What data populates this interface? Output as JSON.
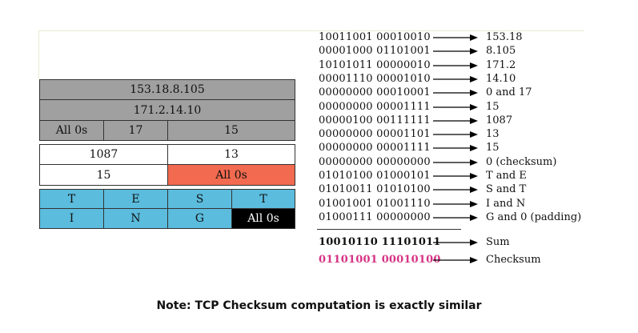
{
  "header_rows": [
    {
      "cells": [
        {
          "text": "153.18.8.105",
          "color": "gray"
        }
      ]
    },
    {
      "cells": [
        {
          "text": "171.2.14.10",
          "color": "gray"
        }
      ]
    },
    {
      "cells": [
        {
          "text": "All 0s",
          "color": "gray"
        },
        {
          "text": "17",
          "color": "gray"
        },
        {
          "text": "15",
          "color": "gray"
        }
      ]
    },
    {
      "cells": [
        {
          "text": "1087",
          "color": "white"
        },
        {
          "text": "13",
          "color": "white"
        }
      ]
    },
    {
      "cells": [
        {
          "text": "15",
          "color": "white"
        },
        {
          "text": "All 0s",
          "color": "orange"
        }
      ]
    },
    {
      "cells": [
        {
          "text": "T",
          "color": "blue"
        },
        {
          "text": "E",
          "color": "blue"
        },
        {
          "text": "S",
          "color": "blue"
        },
        {
          "text": "T",
          "color": "blue"
        }
      ]
    },
    {
      "cells": [
        {
          "text": "I",
          "color": "blue"
        },
        {
          "text": "N",
          "color": "blue"
        },
        {
          "text": "G",
          "color": "blue"
        },
        {
          "text": "All 0s",
          "color": "black"
        }
      ]
    }
  ],
  "lines": [
    {
      "binary": "10011001 00010010",
      "value": "153.18"
    },
    {
      "binary": "00001000 01101001",
      "value": "8.105"
    },
    {
      "binary": "10101011 00000010",
      "value": "171.2"
    },
    {
      "binary": "00001110 00001010",
      "value": "14.10"
    },
    {
      "binary": "00000000 00010001",
      "value": "0 and 17"
    },
    {
      "binary": "00000000 00001111",
      "value": "15"
    },
    {
      "binary": "00000100 00111111",
      "value": "1087"
    },
    {
      "binary": "00000000 00001101",
      "value": "13"
    },
    {
      "binary": "00000000 00001111",
      "value": "15"
    },
    {
      "binary": "00000000 00000000",
      "value": "0 (checksum)"
    },
    {
      "binary": "01010100 01000101",
      "value": "T and E"
    },
    {
      "binary": "01010011 01010100",
      "value": "S and T"
    },
    {
      "binary": "01001001 01001110",
      "value": "I and N"
    },
    {
      "binary": "01000111 00000000",
      "value": "G and 0 (padding)"
    }
  ],
  "sum": {
    "binary": "10010110 11101011",
    "label": "Sum"
  },
  "checksum": {
    "binary": "01101001 00010100",
    "label": "Checksum"
  },
  "colors": {
    "gray": "#a0a0a0",
    "white": "#ffffff",
    "orange": "#f26a4f",
    "blue": "#5bbcdd",
    "black": "#000000",
    "pink": "#d63384"
  },
  "note": "Note: TCP Checksum computation is exactly similar"
}
